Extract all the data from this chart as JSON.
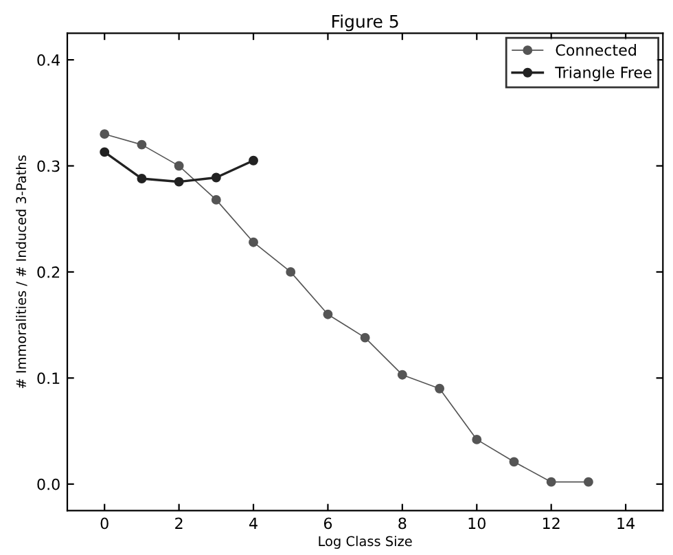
{
  "chart_data": {
    "type": "line",
    "title": "Figure 5",
    "xlabel": "Log Class Size",
    "ylabel": "# Immoralities / # Induced 3-Paths",
    "series": [
      {
        "name": "Connected",
        "color": "#555555",
        "x": [
          0,
          1,
          2,
          3,
          4,
          5,
          6,
          7,
          8,
          9,
          10,
          11,
          12,
          13
        ],
        "values": [
          0.33,
          0.32,
          0.3,
          0.268,
          0.228,
          0.2,
          0.16,
          0.138,
          0.103,
          0.09,
          0.042,
          0.021,
          0.002,
          0.002
        ]
      },
      {
        "name": "Triangle Free",
        "color": "#222222",
        "x": [
          0,
          1,
          2,
          3,
          4
        ],
        "values": [
          0.313,
          0.288,
          0.285,
          0.289,
          0.305
        ]
      }
    ],
    "xlim": [
      -1,
      15
    ],
    "ylim": [
      -0.025,
      0.425
    ],
    "xticks": [
      0,
      2,
      4,
      6,
      8,
      10,
      12,
      14
    ],
    "yticks": [
      {
        "value": 0,
        "label": "0.0"
      },
      {
        "value": 0.1,
        "label": "0.1"
      },
      {
        "value": 0.2,
        "label": "0.2"
      },
      {
        "value": 0.3,
        "label": "0.3"
      },
      {
        "value": 0.4,
        "label": "0.4"
      }
    ],
    "marker": "circle",
    "legend": "top right",
    "grid": false
  }
}
